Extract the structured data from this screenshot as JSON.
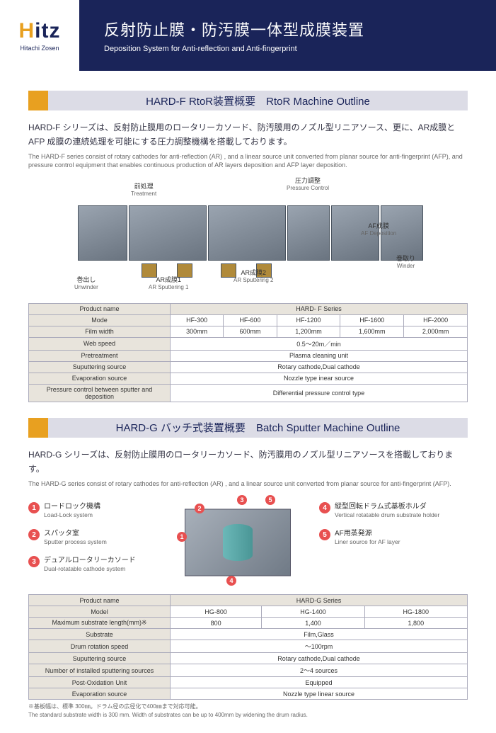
{
  "header": {
    "logo_main_h": "H",
    "logo_main_itz": "itz",
    "logo_sub": "Hitachi Zosen",
    "title_jp": "反射防止膜・防汚膜一体型成膜装置",
    "title_en": "Deposition System for Anti-reflection and Anti-fingerprint"
  },
  "sec1": {
    "bar": "HARD-F RtoR装置概要　RtoR Machine Outline",
    "intro_jp": "HARD-F シリーズは、反射防止膜用のロータリーカソード、防汚膜用のノズル型リニアソース、更に、AR成膜と AFP 成膜の連続処理を可能にする圧力調整機構を搭載しております。",
    "intro_en": "The HARD-F series consist of rotary cathodes for anti-reflection (AR) , and a linear source unit converted from planar source for anti-fingerprint (AFP), and pressure control equipment that enables continuous production of AR layers deposition and AFP layer deposition.",
    "labels": {
      "treat": {
        "jp": "前処理",
        "en": "Treatment"
      },
      "pressure": {
        "jp": "圧力調整",
        "en": "Pressure Control"
      },
      "af": {
        "jp": "AF成膜",
        "en": "AF Deposition"
      },
      "winder": {
        "jp": "巻取り",
        "en": "Winder"
      },
      "unwinder": {
        "jp": "巻出し",
        "en": "Unwinder"
      },
      "ar1": {
        "jp": "AR成膜1",
        "en": "AR Sputtering 1"
      },
      "ar2": {
        "jp": "AR成膜2",
        "en": "AR Sputtering 2"
      }
    },
    "table": {
      "col_product": "Product name",
      "col_series": "HARD- F  Series",
      "rows": [
        {
          "k": "Mode",
          "v": [
            "HF-300",
            "HF-600",
            "HF-1200",
            "HF-1600",
            "HF-2000"
          ]
        },
        {
          "k": "Film width",
          "v": [
            "300mm",
            "600mm",
            "1,200mm",
            "1,600mm",
            "2,000mm"
          ]
        },
        {
          "k": "Web speed",
          "span": "0.5～20m／min"
        },
        {
          "k": "Pretreatment",
          "span": "Plasma cleaning unit"
        },
        {
          "k": "Suputtering source",
          "span": "Rotary cathode,Dual cathode"
        },
        {
          "k": "Evaporation source",
          "span": "Nozzle type  inear source"
        },
        {
          "k": "Pressure control between sputter and deposition",
          "span": "Differential pressure control type"
        }
      ]
    }
  },
  "sec2": {
    "bar": "HARD-G バッチ式装置概要　Batch Sputter Machine Outline",
    "intro_jp": "HARD-G シリーズは、反射防止膜用のロータリーカソード、防汚膜用のノズル型リニアソースを搭載しております。",
    "intro_en": "The HARD-G series consist of rotary cathodes for anti-reflection (AR) , and a linear source unit converted from planar source for anti-fingerprint (AFP).",
    "feats": [
      {
        "n": "1",
        "jp": "ロードロック機構",
        "en": "Load-Lock system"
      },
      {
        "n": "2",
        "jp": "スパッタ室",
        "en": "Sputter process system"
      },
      {
        "n": "3",
        "jp": "デュアルロータリーカソード",
        "en": "Dual-rotatable cathode system"
      },
      {
        "n": "4",
        "jp": "縦型回転ドラム式基板ホルダ",
        "en": "Vertical rotatable drum substrate holder"
      },
      {
        "n": "5",
        "jp": "AF用蒸発源",
        "en": "Liner source for AF layer"
      }
    ],
    "table": {
      "col_product": "Product name",
      "col_series": "HARD-G Series",
      "rows": [
        {
          "k": "Model",
          "v": [
            "HG-800",
            "HG-1400",
            "HG-1800"
          ]
        },
        {
          "k": "Maximum substrate length(mm)※",
          "v": [
            "800",
            "1,400",
            "1,800"
          ]
        },
        {
          "k": "Substrate",
          "span": "Film,Glass"
        },
        {
          "k": "Drum rotation speed",
          "span": "～100rpm"
        },
        {
          "k": "Suputtering source",
          "span": "Rotary cathode,Dual cathode"
        },
        {
          "k": "Number of installed sputtering sources",
          "span": "2～4 sources"
        },
        {
          "k": "Post-Oxidation Unit",
          "span": "Equipped"
        },
        {
          "k": "Evaporation source",
          "span": "Nozzle type linear source"
        }
      ]
    },
    "footnote_jp": "※基板幅は、標準 300㎜。ドラム径の広径化で400㎜まで対応可能。",
    "footnote_en": "The standard substrate width is 300 mm. Width of substrates can be up to 400mm by widening the drum radius."
  },
  "colors": {
    "navy": "#1a2459",
    "gold": "#e8a020",
    "red": "#e85050",
    "barbg": "#dcdce6",
    "th": "#e8e4dc"
  }
}
